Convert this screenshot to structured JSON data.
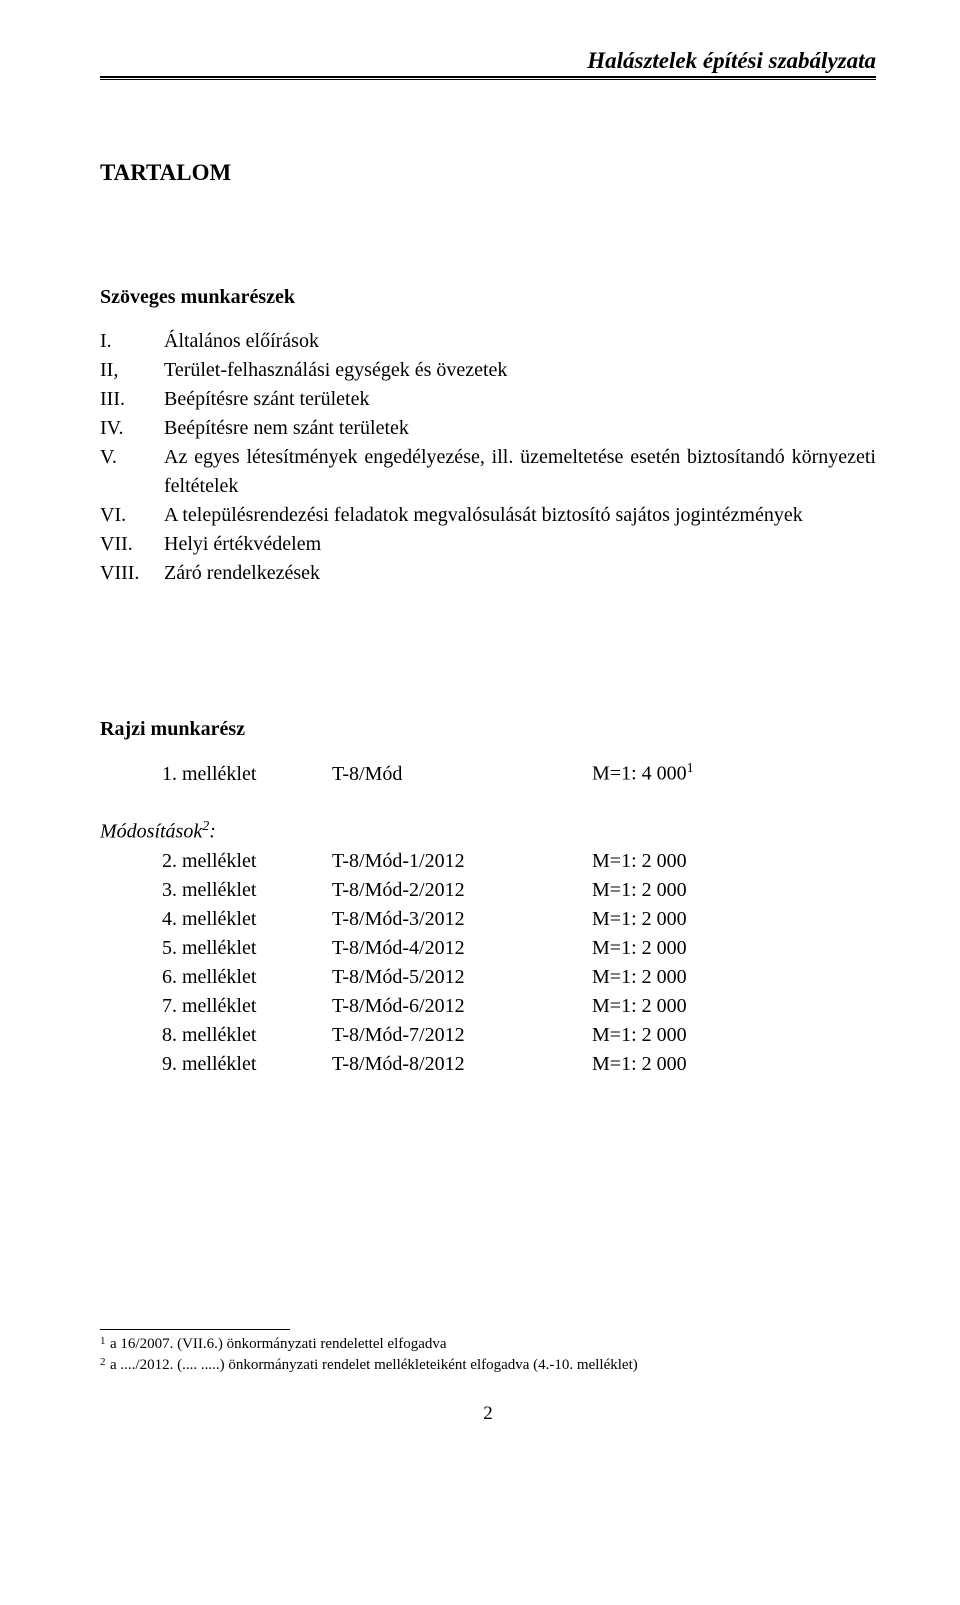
{
  "header": {
    "title": "Halásztelek építési szabályzata"
  },
  "main_heading": "TARTALOM",
  "toc": {
    "heading": "Szöveges munkarészek",
    "items": [
      {
        "num": "I.",
        "text": "Általános előírások"
      },
      {
        "num": "II,",
        "text": "Terület-felhasználási egységek és övezetek"
      },
      {
        "num": "III.",
        "text": "Beépítésre szánt területek"
      },
      {
        "num": "IV.",
        "text": "Beépítésre nem szánt területek"
      },
      {
        "num": "V.",
        "text": "Az egyes létesítmények engedélyezése, ill. üzemeltetése esetén biztosítandó környezeti feltételek"
      },
      {
        "num": "VI.",
        "text": "A településrendezési feladatok megvalósulását biztosító sajátos jogintézmények"
      },
      {
        "num": "VII.",
        "text": "Helyi értékvédelem"
      },
      {
        "num": "VIII.",
        "text": "Záró rendelkezések"
      }
    ]
  },
  "drawing_section": {
    "heading": "Rajzi munkarész",
    "primary": {
      "col1": "1. melléklet",
      "col2": "T-8/Mód",
      "col3_prefix": "M=1: 4 000",
      "sup": "1"
    }
  },
  "modifications": {
    "heading_prefix": "Módosítások",
    "heading_sup": "2",
    "heading_suffix": ":",
    "items": [
      {
        "col1": "2. melléklet",
        "col2": "T-8/Mód-1/2012",
        "col3": "M=1: 2 000"
      },
      {
        "col1": "3. melléklet",
        "col2": "T-8/Mód-2/2012",
        "col3": "M=1: 2 000"
      },
      {
        "col1": "4. melléklet",
        "col2": "T-8/Mód-3/2012",
        "col3": "M=1: 2 000"
      },
      {
        "col1": "5. melléklet",
        "col2": "T-8/Mód-4/2012",
        "col3": "M=1: 2 000"
      },
      {
        "col1": "6. melléklet",
        "col2": "T-8/Mód-5/2012",
        "col3": "M=1: 2 000"
      },
      {
        "col1": "7. melléklet",
        "col2": "T-8/Mód-6/2012",
        "col3": "M=1: 2 000"
      },
      {
        "col1": "8. melléklet",
        "col2": "T-8/Mód-7/2012",
        "col3": "M=1: 2 000"
      },
      {
        "col1": "9. melléklet",
        "col2": "T-8/Mód-8/2012",
        "col3": "M=1: 2 000"
      }
    ]
  },
  "footnotes": [
    {
      "num": "1",
      "text": "a 16/2007. (VII.6.) önkormányzati rendelettel elfogadva"
    },
    {
      "num": "2",
      "text": "a ..../2012. (.... .....) önkormányzati rendelet mellékleteiként elfogadva (4.-10. melléklet)"
    }
  ],
  "page_number": "2",
  "colors": {
    "text": "#000000",
    "background": "#ffffff",
    "rule": "#000000"
  },
  "typography": {
    "font_family": "Times New Roman",
    "header_title_size_pt": 17,
    "main_heading_size_pt": 17,
    "section_heading_size_pt": 15,
    "body_size_pt": 15,
    "footnote_size_pt": 11
  }
}
